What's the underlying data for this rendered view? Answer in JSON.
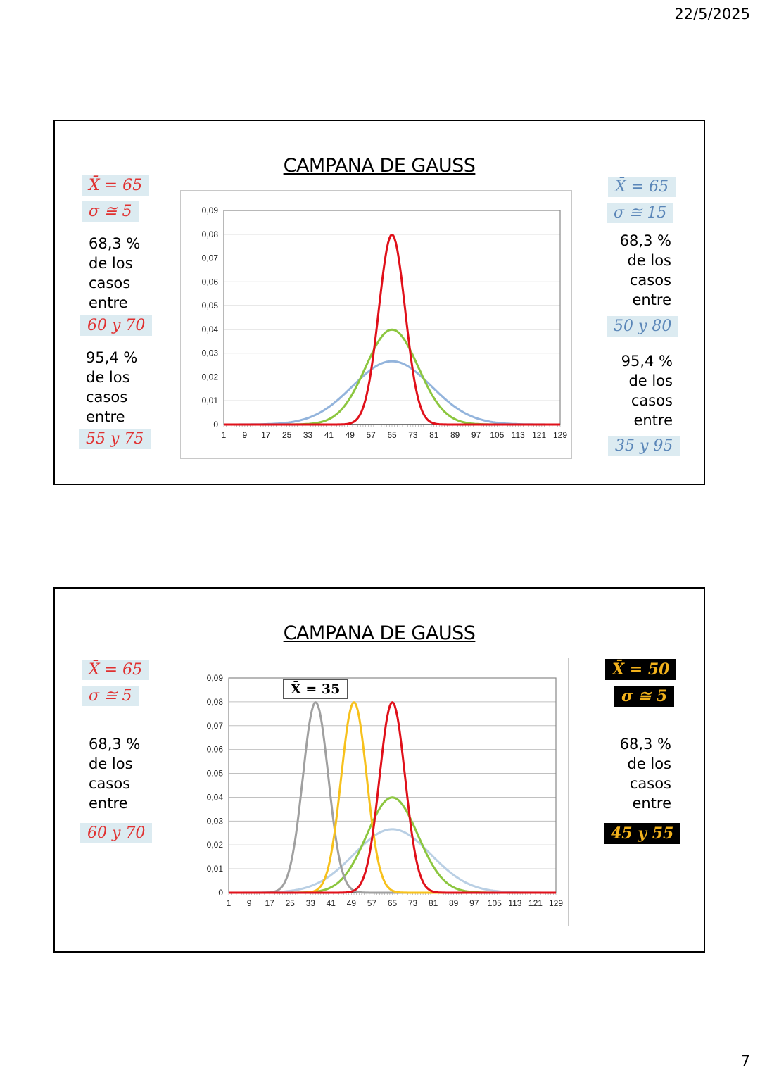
{
  "page": {
    "date": "22/5/2025",
    "number": "7"
  },
  "slides": [
    {
      "title": "CAMPANA DE GAUSS",
      "left": {
        "mean": "X̄ = 65",
        "sigma": "σ ≅  5",
        "pct1": "68,3 %",
        "l1a": "de los",
        "l1b": "casos",
        "l1c": "entre",
        "range1": "60 y 70",
        "pct2": "95,4 %",
        "l2a": "de los",
        "l2b": "casos",
        "l2c": "entre",
        "range2": "55 y 75"
      },
      "right": {
        "mean": "X̄ = 65",
        "sigma": "σ ≅ 15",
        "pct1": "68,3 %",
        "l1a": "de los",
        "l1b": "casos",
        "l1c": "entre",
        "range1": "50 y 80",
        "pct2": "95,4 %",
        "l2a": "de los",
        "l2b": "casos",
        "l2c": "entre",
        "range2": "35 y 95"
      }
    },
    {
      "title": "CAMPANA DE GAUSS",
      "left": {
        "mean": "X̄ = 65",
        "sigma": "σ ≅  5",
        "pct1": "68,3 %",
        "l1a": "de los",
        "l1b": "casos",
        "l1c": "entre",
        "range1": "60 y 70"
      },
      "right": {
        "mean": "X̄ = 50",
        "sigma": "σ ≅ 5",
        "pct1": "68,3 %",
        "l1a": "de los",
        "l1b": "casos",
        "l1c": "entre",
        "range1": "45 y 55"
      },
      "annotation": "X̄ = 35"
    }
  ],
  "colors": {
    "red": "#e0101a",
    "green": "#8cc63f",
    "blue": "#93b4dc",
    "lightblue": "#b9cfe4",
    "yellow": "#f7c11c",
    "gray": "#a0a0a0"
  },
  "chart_data": [
    {
      "type": "line",
      "title": "CAMPANA DE GAUSS",
      "xlabel": "",
      "ylabel": "",
      "x_ticks": [
        "1",
        "9",
        "17",
        "25",
        "33",
        "41",
        "49",
        "57",
        "65",
        "73",
        "81",
        "89",
        "97",
        "105",
        "113",
        "121",
        "129"
      ],
      "y_ticks": [
        "0",
        "0,01",
        "0,02",
        "0,03",
        "0,04",
        "0,05",
        "0,06",
        "0,07",
        "0,08",
        "0,09"
      ],
      "xlim": [
        1,
        129
      ],
      "ylim": [
        0,
        0.09
      ],
      "grid": true,
      "legend": "none",
      "series": [
        {
          "name": "media 65, sigma 15",
          "color": "#93b4dc",
          "mean": 65,
          "sd": 15,
          "peak": 0.0266
        },
        {
          "name": "media 65, sigma 10",
          "color": "#8cc63f",
          "mean": 65,
          "sd": 10,
          "peak": 0.0399
        },
        {
          "name": "media 65, sigma 5",
          "color": "#e0101a",
          "mean": 65,
          "sd": 5,
          "peak": 0.0798
        }
      ]
    },
    {
      "type": "line",
      "title": "CAMPANA DE GAUSS",
      "xlabel": "",
      "ylabel": "",
      "x_ticks": [
        "1",
        "9",
        "17",
        "25",
        "33",
        "41",
        "49",
        "57",
        "65",
        "73",
        "81",
        "89",
        "97",
        "105",
        "113",
        "121",
        "129"
      ],
      "y_ticks": [
        "0",
        "0,01",
        "0,02",
        "0,03",
        "0,04",
        "0,05",
        "0,06",
        "0,07",
        "0,08",
        "0,09"
      ],
      "xlim": [
        1,
        129
      ],
      "ylim": [
        0,
        0.09
      ],
      "grid": true,
      "legend": "none",
      "annotations": [
        "X̄ = 35"
      ],
      "series": [
        {
          "name": "media 65, sigma 15",
          "color": "#b9cfe4",
          "mean": 65,
          "sd": 15,
          "peak": 0.0266
        },
        {
          "name": "media 65, sigma 10",
          "color": "#8cc63f",
          "mean": 65,
          "sd": 10,
          "peak": 0.0399
        },
        {
          "name": "media 35, sigma 5",
          "color": "#a0a0a0",
          "mean": 35,
          "sd": 5,
          "peak": 0.0798
        },
        {
          "name": "media 50, sigma 5",
          "color": "#f7c11c",
          "mean": 50,
          "sd": 5,
          "peak": 0.0798
        },
        {
          "name": "media 65, sigma 5",
          "color": "#e0101a",
          "mean": 65,
          "sd": 5,
          "peak": 0.0798
        }
      ]
    }
  ]
}
